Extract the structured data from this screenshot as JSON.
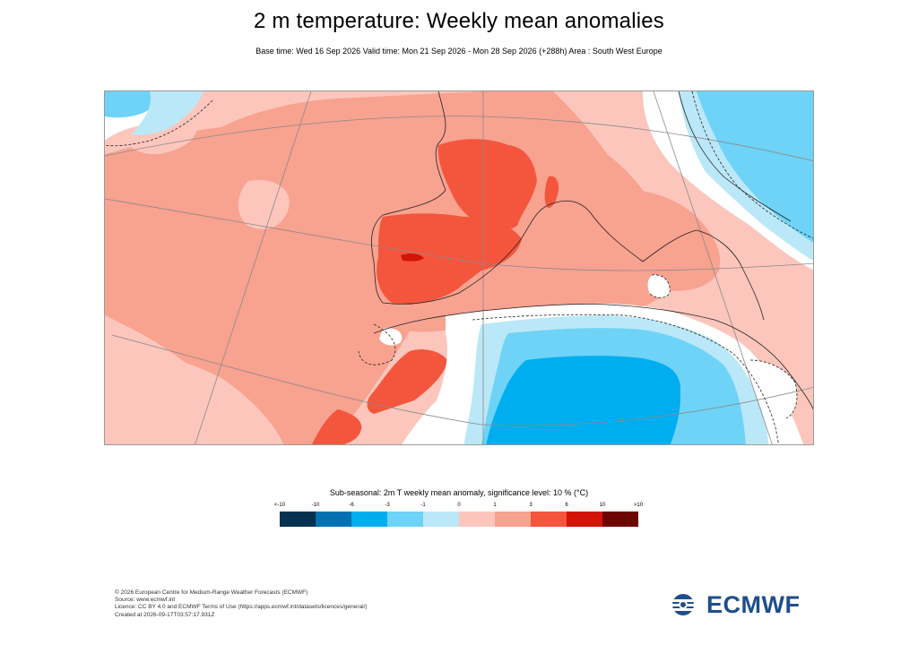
{
  "title": "2 m temperature: Weekly mean anomalies",
  "subtitle": "Base time: Wed 16 Sep 2026 Valid time: Mon 21 Sep 2026 - Mon 28 Sep 2026 (+288h) Area : South West Europe",
  "legend": {
    "title": "Sub-seasonal: 2m T weekly mean anomaly, significance level: 10 % (°C)",
    "ticks": [
      "<-10",
      "-10",
      "-6",
      "-3",
      "-1",
      "0",
      "1",
      "3",
      "6",
      "10",
      ">10"
    ],
    "colors": [
      "#06314f",
      "#0271b1",
      "#00aeef",
      "#6ed3f7",
      "#bbe8f8",
      "#ffffff",
      "#fcc6bc",
      "#f8a290",
      "#f4553d",
      "#d31408",
      "#6d0600"
    ]
  },
  "map_colors": {
    "very_warm": "#f4553d",
    "warm": "#f8a290",
    "slightly_warm": "#fcc6bc",
    "neutral": "#ffffff",
    "slightly_cold": "#bbe8f8",
    "cold": "#6ed3f7",
    "very_cold": "#00aeef",
    "extreme_warm": "#d31408"
  },
  "footer": {
    "line1": "© 2026 European Centre for Medium-Range Weather Forecasts (ECMWF)",
    "line2": "Source: www.ecmwf.int",
    "line3": "Licence: CC BY 4.0 and ECMWF Terms of Use (https://apps.ecmwf.int/datasets/licences/general/)",
    "line4": "Created at 2026-09-17T03:57:17.931Z"
  },
  "logo_text": "ECMWF"
}
